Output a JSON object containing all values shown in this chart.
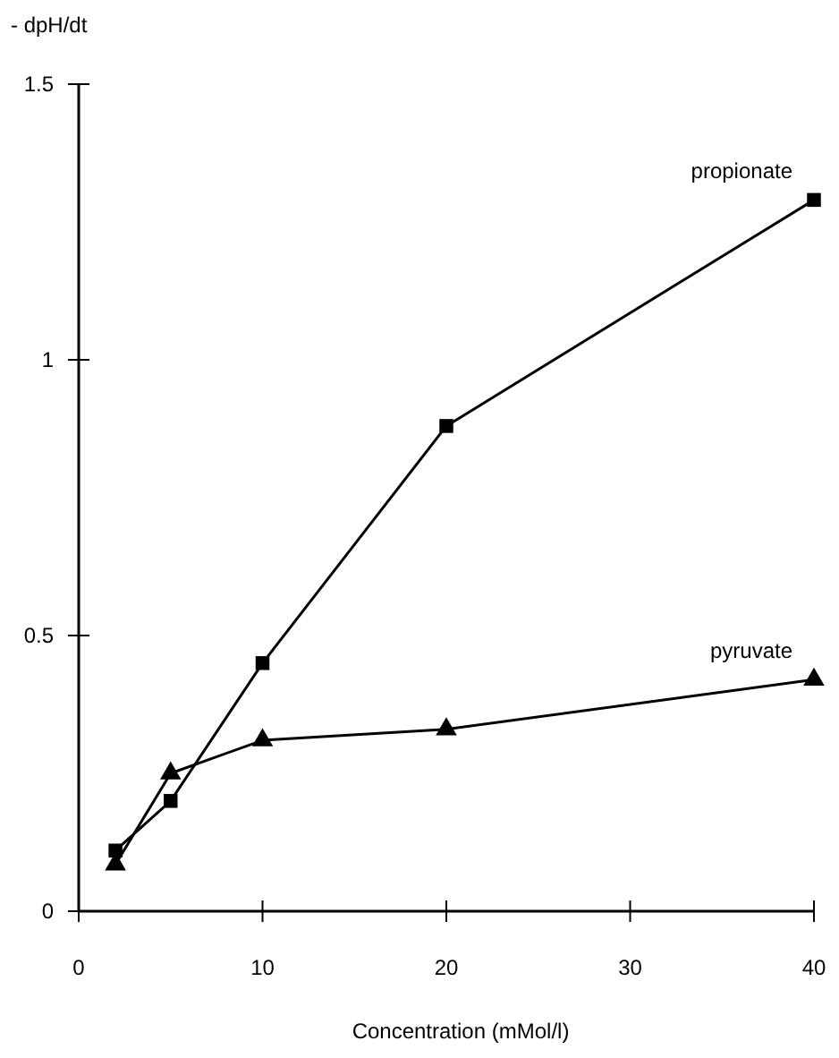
{
  "chart_data": {
    "type": "line",
    "xlabel": "Concentration  (mMol/l)",
    "ylabel": "- dpH/dt",
    "x": [
      2,
      5,
      10,
      20,
      40
    ],
    "series": [
      {
        "name": "propionate",
        "color": "#000000",
        "marker": "square",
        "values": [
          0.11,
          0.2,
          0.45,
          0.88,
          1.29
        ]
      },
      {
        "name": "pyruvate",
        "color": "#000000",
        "marker": "triangle",
        "values": [
          0.085,
          0.25,
          0.31,
          0.33,
          0.42
        ]
      }
    ],
    "xlim": [
      0,
      40
    ],
    "xticks": [
      0,
      10,
      20,
      30,
      40
    ],
    "ylim": [
      0,
      1.5
    ],
    "yticks": [
      0,
      0.5,
      1,
      1.5
    ],
    "grid": false,
    "line_style": "solid"
  }
}
